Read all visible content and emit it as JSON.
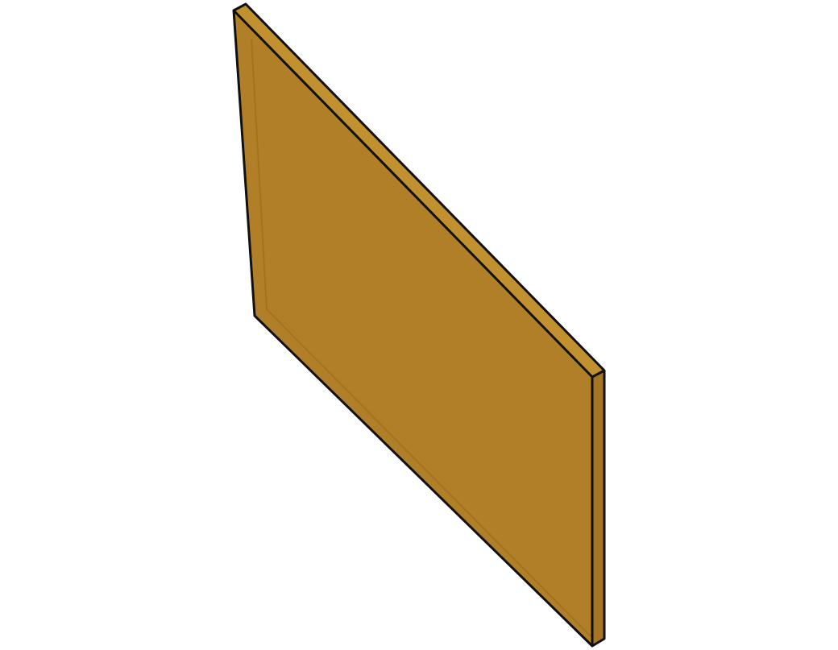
{
  "scene": {
    "object": "panel",
    "colors": {
      "background": "#ffffff",
      "face": "#b07f28",
      "top_edge": "#c1902f",
      "side_edge": "#a57523",
      "inner_border": "#9a6b18",
      "outline": "#111111"
    }
  }
}
